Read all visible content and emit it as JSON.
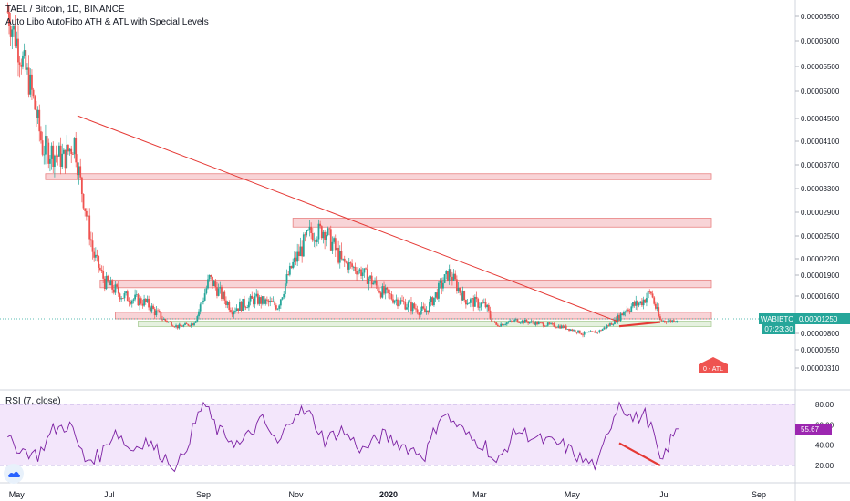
{
  "header": {
    "symbol_title": "TAEL / Bitcoin, 1D, BINANCE",
    "indicator_title": "Auto Libo AutoFibo ATH & ATL with Special Levels"
  },
  "colors": {
    "candle_up": "#26a69a",
    "candle_down": "#ef5350",
    "trendline": "#e53935",
    "zone_red_fill": "#f8d0d3",
    "zone_red_border": "#e57373",
    "zone_green_fill": "#e3f0dc",
    "zone_green_border": "#a5c98f",
    "rsi_line": "#7b1fa2",
    "rsi_band": "#f3e6fb",
    "price_label_bg": "#26a69a",
    "rsi_label_bg": "#9c27b0",
    "atl_label_bg": "#ef5350",
    "divergence": "#e53935"
  },
  "chart_data": [
    {
      "type": "candlestick",
      "title": "TAEL / Bitcoin, 1D, BINANCE",
      "subtitle": "Auto Libo AutoFibo ATH & ATL with Special Levels",
      "x_tick_labels": [
        "May",
        "Jul",
        "Sep",
        "Nov",
        "2020",
        "Mar",
        "May",
        "Jul",
        "Sep"
      ],
      "y_tick_labels": [
        "0.00006500",
        "0.00006000",
        "0.00005500",
        "0.00005000",
        "0.00004500",
        "0.00004100",
        "0.00003700",
        "0.00003300",
        "0.00002900",
        "0.00002500",
        "0.00002200",
        "0.00001900",
        "0.00001600",
        "0.00001250",
        "0.00000800",
        "0.00000550",
        "0.00000310"
      ],
      "series": [
        {
          "name": "WABIBTC",
          "points": [
            {
              "date": "2019-04-25",
              "close": 6.6e-05
            },
            {
              "date": "2019-05-01",
              "close": 6e-05
            },
            {
              "date": "2019-05-10",
              "close": 5.1e-05
            },
            {
              "date": "2019-05-18",
              "close": 4e-05
            },
            {
              "date": "2019-05-25",
              "close": 3.9e-05
            },
            {
              "date": "2019-06-01",
              "close": 3.8e-05
            },
            {
              "date": "2019-06-08",
              "close": 4.1e-05
            },
            {
              "date": "2019-06-12",
              "close": 3.4e-05
            },
            {
              "date": "2019-06-20",
              "close": 2.3e-05
            },
            {
              "date": "2019-06-28",
              "close": 1.8e-05
            },
            {
              "date": "2019-07-10",
              "close": 1.6e-05
            },
            {
              "date": "2019-07-25",
              "close": 1.5e-05
            },
            {
              "date": "2019-08-05",
              "close": 1.25e-05
            },
            {
              "date": "2019-08-15",
              "close": 1e-05
            },
            {
              "date": "2019-08-25",
              "close": 1.1e-05
            },
            {
              "date": "2019-09-05",
              "close": 1.85e-05
            },
            {
              "date": "2019-09-20",
              "close": 1.4e-05
            },
            {
              "date": "2019-10-05",
              "close": 1.55e-05
            },
            {
              "date": "2019-10-20",
              "close": 1.45e-05
            },
            {
              "date": "2019-10-30",
              "close": 2.1e-05
            },
            {
              "date": "2019-11-10",
              "close": 2.55e-05
            },
            {
              "date": "2019-11-20",
              "close": 2.6e-05
            },
            {
              "date": "2019-12-01",
              "close": 2.15e-05
            },
            {
              "date": "2019-12-15",
              "close": 1.95e-05
            },
            {
              "date": "2019-12-28",
              "close": 1.65e-05
            },
            {
              "date": "2020-01-10",
              "close": 1.5e-05
            },
            {
              "date": "2020-01-25",
              "close": 1.35e-05
            },
            {
              "date": "2020-02-10",
              "close": 1.95e-05
            },
            {
              "date": "2020-02-20",
              "close": 1.55e-05
            },
            {
              "date": "2020-03-05",
              "close": 1.45e-05
            },
            {
              "date": "2020-03-12",
              "close": 1.05e-05
            },
            {
              "date": "2020-03-25",
              "close": 1.2e-05
            },
            {
              "date": "2020-04-10",
              "close": 1.1e-05
            },
            {
              "date": "2020-04-25",
              "close": 1e-05
            },
            {
              "date": "2020-05-08",
              "close": 8e-06
            },
            {
              "date": "2020-05-18",
              "close": 8.5e-06
            },
            {
              "date": "2020-05-25",
              "close": 1.05e-05
            },
            {
              "date": "2020-06-05",
              "close": 1.4e-05
            },
            {
              "date": "2020-06-15",
              "close": 1.5e-05
            },
            {
              "date": "2020-06-22",
              "close": 1.65e-05
            },
            {
              "date": "2020-06-28",
              "close": 1.2e-05
            },
            {
              "date": "2020-07-05",
              "close": 1.18e-05
            },
            {
              "date": "2020-07-10",
              "close": 1.25e-05
            }
          ]
        }
      ],
      "trendline": {
        "start": {
          "date": "2019-06-10",
          "price": 4.55e-05
        },
        "end": {
          "date": "2020-06-01",
          "price": 1.15e-05
        }
      },
      "divergence_line": {
        "start": {
          "date": "2020-06-01",
          "price": 1.02e-05
        },
        "end": {
          "date": "2020-06-28",
          "price": 1.15e-05
        }
      },
      "zones": [
        {
          "color": "red",
          "from": "2019-05-20",
          "to": "2020-09-01",
          "low": 3.45e-05,
          "high": 3.55e-05
        },
        {
          "color": "red",
          "from": "2019-10-30",
          "to": "2020-09-01",
          "low": 2.65e-05,
          "high": 2.8e-05
        },
        {
          "color": "red",
          "from": "2019-06-25",
          "to": "2020-09-01",
          "low": 1.72e-05,
          "high": 1.83e-05
        },
        {
          "color": "red",
          "from": "2019-07-05",
          "to": "2020-09-01",
          "low": 1.25e-05,
          "high": 1.35e-05
        },
        {
          "color": "green",
          "from": "2019-07-20",
          "to": "2020-09-01",
          "low": 1.08e-05,
          "high": 1.18e-05
        }
      ],
      "last_price": {
        "label": "WABIBTC",
        "value": "0.00001250",
        "countdown": "07:23:30"
      },
      "atl_label": "0 - ATL"
    },
    {
      "type": "line",
      "title": "RSI (7, close)",
      "y_tick_labels": [
        "80.00",
        "60.00",
        "40.00",
        "20.00"
      ],
      "band": [
        20,
        80
      ],
      "last_value": "55.67",
      "divergence_line": {
        "start": {
          "date": "2020-06-01",
          "value": 42
        },
        "end": {
          "date": "2020-06-28",
          "value": 20
        }
      },
      "series": [
        {
          "points": [
            {
              "date": "2019-04-25",
              "value": 45
            },
            {
              "date": "2019-05-05",
              "value": 35
            },
            {
              "date": "2019-05-15",
              "value": 30
            },
            {
              "date": "2019-05-25",
              "value": 55
            },
            {
              "date": "2019-06-05",
              "value": 60
            },
            {
              "date": "2019-06-15",
              "value": 25
            },
            {
              "date": "2019-06-25",
              "value": 30
            },
            {
              "date": "2019-07-05",
              "value": 55
            },
            {
              "date": "2019-07-15",
              "value": 35
            },
            {
              "date": "2019-07-25",
              "value": 45
            },
            {
              "date": "2019-08-05",
              "value": 30
            },
            {
              "date": "2019-08-15",
              "value": 18
            },
            {
              "date": "2019-08-25",
              "value": 55
            },
            {
              "date": "2019-09-01",
              "value": 82
            },
            {
              "date": "2019-09-10",
              "value": 55
            },
            {
              "date": "2019-09-25",
              "value": 40
            },
            {
              "date": "2019-10-10",
              "value": 65
            },
            {
              "date": "2019-10-20",
              "value": 40
            },
            {
              "date": "2019-11-01",
              "value": 75
            },
            {
              "date": "2019-11-10",
              "value": 70
            },
            {
              "date": "2019-11-20",
              "value": 45
            },
            {
              "date": "2019-12-01",
              "value": 55
            },
            {
              "date": "2019-12-15",
              "value": 35
            },
            {
              "date": "2019-12-28",
              "value": 50
            },
            {
              "date": "2020-01-10",
              "value": 40
            },
            {
              "date": "2020-01-25",
              "value": 30
            },
            {
              "date": "2020-02-05",
              "value": 72
            },
            {
              "date": "2020-02-15",
              "value": 60
            },
            {
              "date": "2020-02-25",
              "value": 45
            },
            {
              "date": "2020-03-05",
              "value": 40
            },
            {
              "date": "2020-03-12",
              "value": 20
            },
            {
              "date": "2020-03-25",
              "value": 55
            },
            {
              "date": "2020-04-10",
              "value": 45
            },
            {
              "date": "2020-04-25",
              "value": 40
            },
            {
              "date": "2020-05-08",
              "value": 25
            },
            {
              "date": "2020-05-18",
              "value": 20
            },
            {
              "date": "2020-05-25",
              "value": 55
            },
            {
              "date": "2020-06-01",
              "value": 83
            },
            {
              "date": "2020-06-10",
              "value": 65
            },
            {
              "date": "2020-06-18",
              "value": 70
            },
            {
              "date": "2020-06-24",
              "value": 50
            },
            {
              "date": "2020-06-28",
              "value": 20
            },
            {
              "date": "2020-07-05",
              "value": 45
            },
            {
              "date": "2020-07-10",
              "value": 56
            }
          ]
        }
      ]
    }
  ]
}
